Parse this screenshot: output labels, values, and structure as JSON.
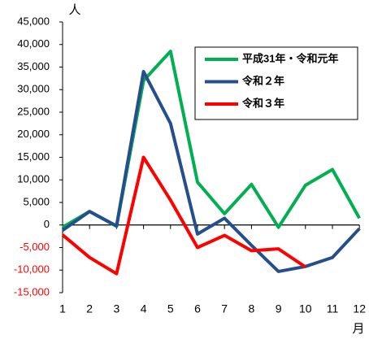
{
  "chart_data": {
    "type": "line",
    "y_label": "人",
    "x_label": "月",
    "categories": [
      "1",
      "2",
      "3",
      "4",
      "5",
      "6",
      "7",
      "8",
      "9",
      "10",
      "11",
      "12"
    ],
    "series": [
      {
        "name": "平成31年・令和元年",
        "color": "#00b050",
        "values": [
          -500,
          3000,
          -300,
          32000,
          38500,
          9500,
          2500,
          9000,
          -500,
          8800,
          12300,
          1500
        ]
      },
      {
        "name": "令和２年",
        "color": "#254f8c",
        "values": [
          -1200,
          3000,
          -200,
          34000,
          22500,
          -2000,
          1500,
          -4500,
          -10300,
          -9200,
          -7200,
          -800
        ]
      },
      {
        "name": "令和３年",
        "color": "#ff0000",
        "values": [
          -2200,
          -7200,
          -10800,
          15000,
          5500,
          -5000,
          -2300,
          -5700,
          -5300,
          -9300,
          null,
          null
        ]
      }
    ],
    "ylim": [
      -15000,
      45000
    ],
    "yticks": [
      {
        "value": -15000,
        "label": "-15,000"
      },
      {
        "value": -10000,
        "label": "-10,000"
      },
      {
        "value": -5000,
        "label": "-5,000"
      },
      0,
      {
        "value": 5000,
        "label": "5,000"
      },
      {
        "value": 10000,
        "label": "10,000"
      },
      {
        "value": 15000,
        "label": "15,000"
      },
      {
        "value": 20000,
        "label": "20,000"
      },
      {
        "value": 25000,
        "label": "25,000"
      },
      {
        "value": 30000,
        "label": "30,000"
      },
      {
        "value": 35000,
        "label": "35,000"
      },
      {
        "value": 40000,
        "label": "40,000"
      },
      {
        "value": 45000,
        "label": "45,000"
      }
    ],
    "negative_tick_color": "#ff0000",
    "legend": "top-right",
    "grid": false
  }
}
